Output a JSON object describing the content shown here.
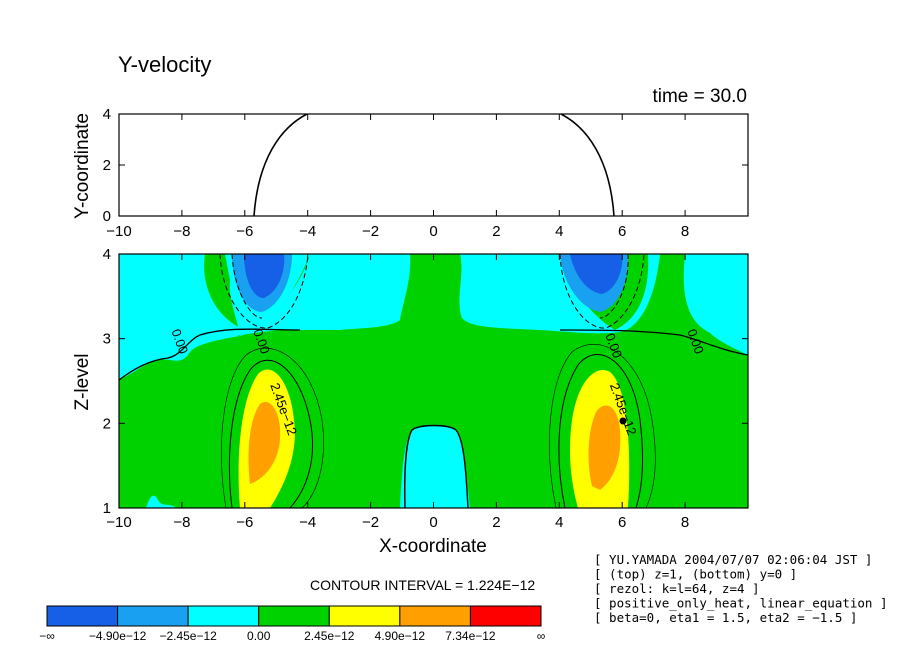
{
  "chart_data": [
    {
      "type": "line",
      "panel": "top",
      "title": "Y-velocity",
      "time_label": "time = 30.0",
      "xlabel": "",
      "ylabel": "Y-coordinate",
      "xlim": [
        -10,
        10
      ],
      "ylim": [
        0,
        4
      ],
      "x_ticks": [
        -10,
        -8,
        -6,
        -4,
        -2,
        0,
        2,
        4,
        6,
        8
      ],
      "x_tick_labels": [
        "−10",
        "−8",
        "−6",
        "−4",
        "−2",
        "0",
        "2",
        "4",
        "6",
        "8"
      ],
      "y_ticks": [
        0,
        2,
        4
      ],
      "y_tick_labels": [
        "0",
        "2",
        "4"
      ],
      "series": [
        {
          "name": "heating boundary left",
          "x": [
            -5.7,
            -5.5,
            -5.0,
            -4.5,
            -4.0
          ],
          "y": [
            0,
            1.2,
            2.7,
            3.6,
            4.0
          ]
        },
        {
          "name": "heating boundary right",
          "x": [
            4.0,
            4.5,
            5.0,
            5.5,
            5.7
          ],
          "y": [
            4.0,
            3.6,
            2.7,
            1.2,
            0
          ]
        }
      ]
    },
    {
      "type": "heatmap",
      "panel": "bottom",
      "xlabel": "X-coordinate",
      "ylabel": "Z-level",
      "xlim": [
        -10,
        10
      ],
      "ylim": [
        1,
        4
      ],
      "x_ticks": [
        -10,
        -8,
        -6,
        -4,
        -2,
        0,
        2,
        4,
        6,
        8
      ],
      "x_tick_labels": [
        "−10",
        "−8",
        "−6",
        "−4",
        "−2",
        "0",
        "2",
        "4",
        "6",
        "8"
      ],
      "y_ticks": [
        1,
        2,
        3,
        4
      ],
      "y_tick_labels": [
        "1",
        "2",
        "3",
        "4"
      ],
      "contour_interval": "CONTOUR INTERVAL = 1.224E−12",
      "contour_labels": [
        {
          "text": "0.00",
          "x": -8.2,
          "z": 2.95
        },
        {
          "text": "0.00",
          "x": -5.6,
          "z": 2.95
        },
        {
          "text": "0.00",
          "x": 5.6,
          "z": 2.9
        },
        {
          "text": "0.00",
          "x": 8.2,
          "z": 2.95
        },
        {
          "text": "2.45e−12",
          "x": -4.9,
          "z": 2.15
        },
        {
          "text": "2.45e−12",
          "x": 5.9,
          "z": 2.15
        }
      ],
      "regions": [
        {
          "name": "upper-left negative core",
          "x": -5.5,
          "z": 3.7,
          "level": "< -4.90e-12"
        },
        {
          "name": "upper-right negative core",
          "x": 5.3,
          "z": 3.7,
          "level": "< -4.90e-12"
        },
        {
          "name": "left positive core",
          "x": -5.6,
          "z": 1.9,
          "level": "4.90e-12 to 7.34e-12"
        },
        {
          "name": "right positive core",
          "x": 5.6,
          "z": 1.9,
          "level": "4.90e-12 to 7.34e-12"
        },
        {
          "name": "central negative lobe",
          "x": 0.0,
          "z": 1.5,
          "level": "-2.45e-12 to 0.00"
        }
      ],
      "colorbar": {
        "colors": [
          "#1560e6",
          "#1aa0f0",
          "#00ffff",
          "#00d200",
          "#ffff00",
          "#ffa000",
          "#ff0000"
        ],
        "labels": [
          "−∞",
          "−4.90e−12",
          "−2.45e−12",
          "0.00",
          "2.45e−12",
          "4.90e−12",
          "7.34e−12",
          "∞"
        ]
      }
    }
  ],
  "info_lines": [
    "[ YU.YAMADA 2004/07/07 02:06:04 JST ]",
    "[ (top) z=1, (bottom) y=0 ]",
    "[ rezol: k=l=64, z=4 ]",
    "[ positive_only_heat, linear_equation ]",
    "[ beta=0, eta1 = 1.5, eta2 = −1.5 ]"
  ]
}
